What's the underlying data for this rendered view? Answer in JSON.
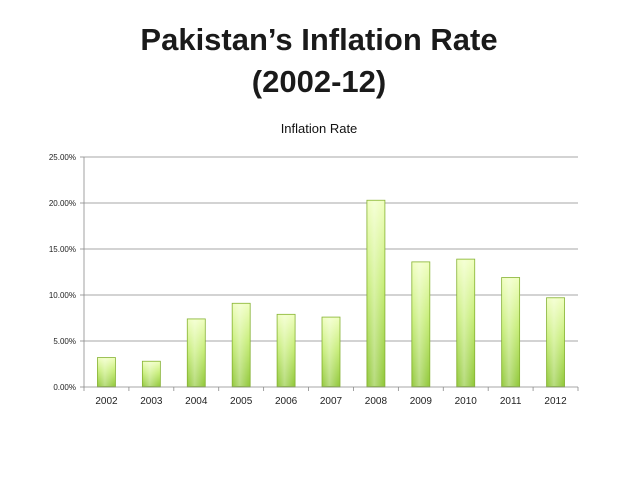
{
  "slide": {
    "title_line1": "Pakistan’s Inflation Rate",
    "title_line2": "(2002-12)"
  },
  "chart_data": {
    "type": "bar",
    "title": "Inflation Rate",
    "xlabel": "",
    "ylabel": "",
    "categories": [
      "2002",
      "2003",
      "2004",
      "2005",
      "2006",
      "2007",
      "2008",
      "2009",
      "2010",
      "2011",
      "2012"
    ],
    "values": [
      3.2,
      2.8,
      7.4,
      9.1,
      7.9,
      7.6,
      20.3,
      13.6,
      13.9,
      11.9,
      9.7
    ],
    "ylim": [
      0,
      25
    ],
    "yticks": [
      0,
      5,
      10,
      15,
      20,
      25
    ],
    "ytick_labels": [
      "0.00%",
      "5.00%",
      "10.00%",
      "15.00%",
      "20.00%",
      "25.00%"
    ],
    "grid": true,
    "legend": false,
    "colors": {
      "bar_top": "#f0ffc0",
      "bar_mid": "#c8ee7a",
      "bar_bottom": "#92c83c",
      "bar_border": "#86b234",
      "gridline": "#8a8a8a",
      "axis": "#8a8a8a"
    }
  }
}
